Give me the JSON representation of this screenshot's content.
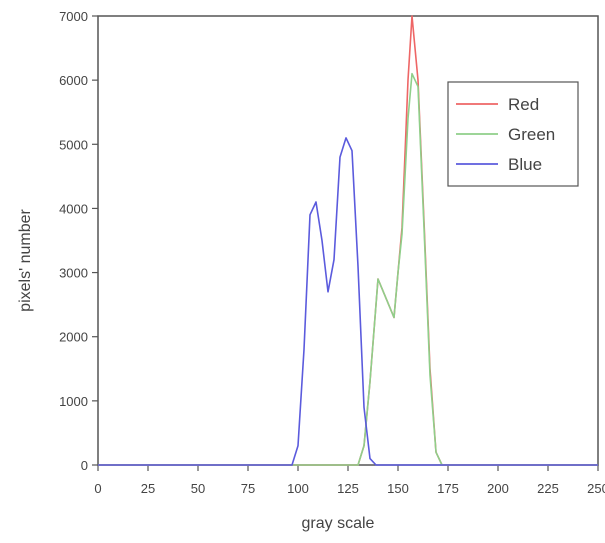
{
  "chart_data": {
    "type": "line",
    "title": "",
    "xlabel": "gray scale",
    "ylabel": "pixels' number",
    "xlim": [
      0,
      250
    ],
    "ylim": [
      0,
      7000
    ],
    "x_ticks": [
      0,
      25,
      50,
      75,
      100,
      125,
      150,
      175,
      200,
      225,
      250
    ],
    "y_ticks": [
      0,
      1000,
      2000,
      3000,
      4000,
      5000,
      6000,
      7000
    ],
    "grid": false,
    "legend_position": "top-right",
    "series": [
      {
        "name": "Red",
        "color": "#ee6666",
        "x": [
          0,
          130,
          133,
          136,
          140,
          144,
          148,
          150,
          152,
          155,
          157,
          160,
          163,
          166,
          169,
          172,
          250
        ],
        "y": [
          0,
          0,
          300,
          1300,
          2900,
          2600,
          2300,
          3000,
          3700,
          6000,
          7000,
          6000,
          3800,
          1500,
          200,
          0,
          0
        ]
      },
      {
        "name": "Green",
        "color": "#8fcf8a",
        "x": [
          0,
          130,
          133,
          136,
          140,
          144,
          148,
          150,
          152,
          155,
          157,
          160,
          163,
          166,
          169,
          172,
          250
        ],
        "y": [
          0,
          0,
          300,
          1300,
          2900,
          2600,
          2300,
          3000,
          3600,
          5400,
          6100,
          5900,
          3700,
          1400,
          200,
          0,
          0
        ]
      },
      {
        "name": "Blue",
        "color": "#5b5bdd",
        "x": [
          0,
          97,
          100,
          103,
          106,
          109,
          112,
          115,
          118,
          121,
          124,
          127,
          130,
          133,
          136,
          139,
          250
        ],
        "y": [
          0,
          0,
          300,
          1800,
          3900,
          4100,
          3500,
          2700,
          3200,
          4800,
          5100,
          4900,
          3100,
          900,
          100,
          0,
          0
        ]
      }
    ]
  }
}
